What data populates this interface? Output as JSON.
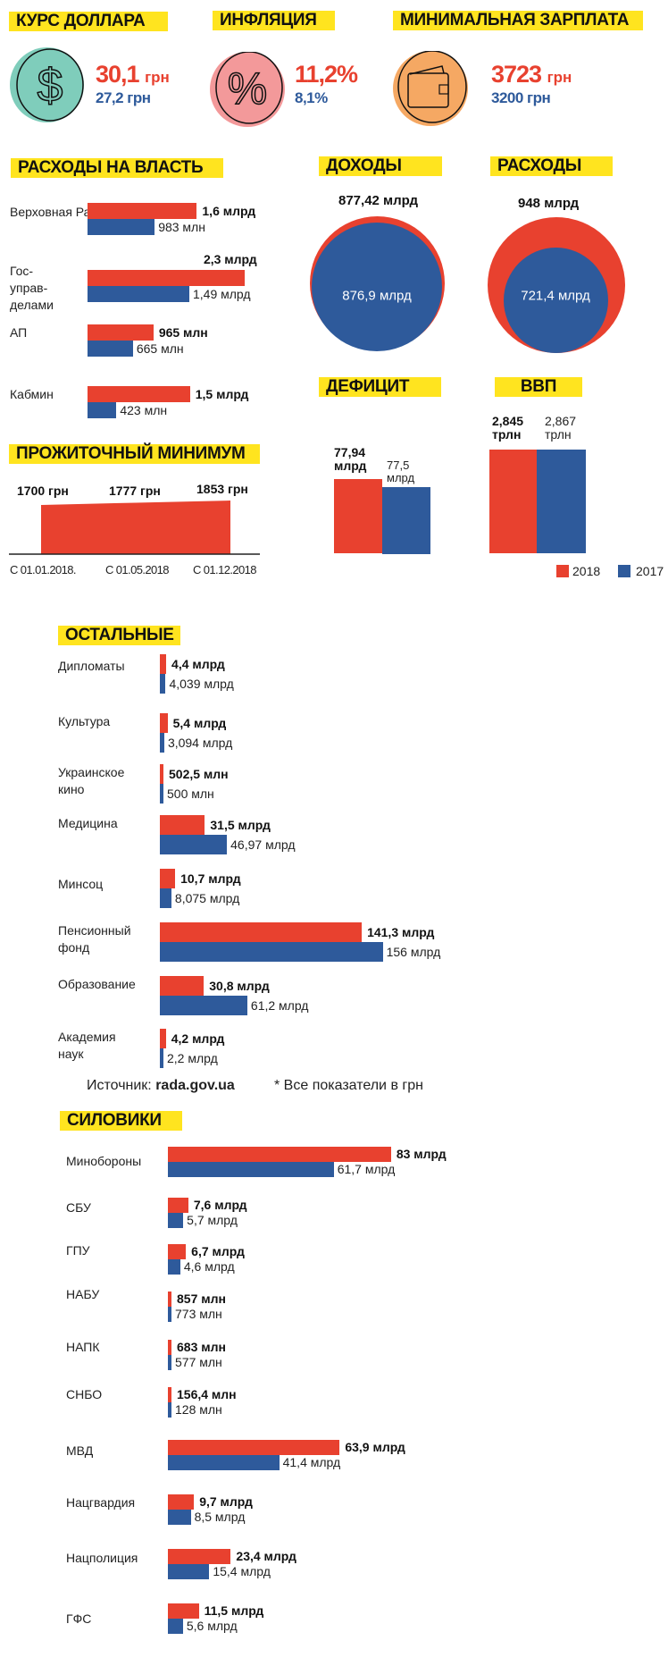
{
  "colors": {
    "y2018": "#E8412F",
    "y2017": "#2E5A9B",
    "highlight": "#FFE41F"
  },
  "headline": {
    "dollar": {
      "title": "КУРС ДОЛЛАРА",
      "value_2018": "30,1",
      "unit_2018": "грн",
      "value_2017": "27,2 грн",
      "icon": "dollar-icon"
    },
    "inflation": {
      "title": "ИНФЛЯЦИЯ",
      "value_2018": "11,2%",
      "value_2017": "8,1%",
      "icon": "percent-icon"
    },
    "min_wage": {
      "title": "МИНИМАЛЬНАЯ ЗАРПЛАТА",
      "value_2018": "3723",
      "unit_2018": "грн",
      "value_2017": "3200 грн",
      "icon": "wallet-icon"
    }
  },
  "chart_data": [
    {
      "type": "bar",
      "title": "РАСХОДЫ НА ВЛАСТЬ",
      "unit": "млрд грн",
      "series": [
        "2018",
        "2017"
      ],
      "rows": [
        {
          "label": "Верховная Рада",
          "v2018": 1.6,
          "v2017": 0.983,
          "l2018": "1,6 млрд",
          "l2017": "983 млн"
        },
        {
          "label": "Гос-\nуправ-\nделами",
          "v2018": 2.3,
          "v2017": 1.49,
          "l2018": "2,3 млрд",
          "l2017": "1,49 млрд"
        },
        {
          "label": "АП",
          "v2018": 0.965,
          "v2017": 0.665,
          "l2018": "965 млн",
          "l2017": "665 млн"
        },
        {
          "label": "Кабмин",
          "v2018": 1.5,
          "v2017": 0.423,
          "l2018": "1,5 млрд",
          "l2017": "423 млн"
        }
      ]
    },
    {
      "type": "area",
      "title": "ДОХОДЫ",
      "v2018": 877.42,
      "v2017": 876.9,
      "l2018": "877,42 млрд",
      "l2017": "876,9 млрд"
    },
    {
      "type": "area",
      "title": "РАСХОДЫ",
      "v2018": 948,
      "v2017": 721.4,
      "l2018": "948 млрд",
      "l2017": "721,4 млрд"
    },
    {
      "type": "area",
      "title": "ПРОЖИТОЧНЫЙ МИНИМУМ",
      "categories": [
        "С 01.01.2018.",
        "С 01.05.2018",
        "С 01.12.2018"
      ],
      "values": [
        1700,
        1777,
        1853
      ],
      "labels": [
        "1700 грн",
        "1777 грн",
        "1853 грн"
      ]
    },
    {
      "type": "bar",
      "title": "ДЕФИЦИТ",
      "v2018": 77.94,
      "v2017": 77.5,
      "l2018": "77,94\nмлрд",
      "l2017": "77,5\nмлрд"
    },
    {
      "type": "bar",
      "title": "ВВП",
      "v2018": 2.845,
      "v2017": 2.867,
      "l2018": "2,845\nтрлн",
      "l2017": "2,867\nтрлн"
    },
    {
      "type": "bar",
      "title": "ОСТАЛЬНЫЕ",
      "unit": "млрд грн",
      "rows": [
        {
          "label": "Дипломаты",
          "v2018": 4.4,
          "v2017": 4.039,
          "l2018": "4,4 млрд",
          "l2017": "4,039 млрд"
        },
        {
          "label": "Культура",
          "v2018": 5.4,
          "v2017": 3.094,
          "l2018": "5,4 млрд",
          "l2017": "3,094 млрд"
        },
        {
          "label": "Украинское\nкино",
          "v2018": 0.5025,
          "v2017": 0.5,
          "l2018": "502,5 млн",
          "l2017": "500 млн"
        },
        {
          "label": "Медицина",
          "v2018": 31.5,
          "v2017": 46.97,
          "l2018": "31,5 млрд",
          "l2017": "46,97 млрд"
        },
        {
          "label": "Минсоц",
          "v2018": 10.7,
          "v2017": 8.075,
          "l2018": "10,7 млрд",
          "l2017": "8,075 млрд"
        },
        {
          "label": "Пенсионный\nфонд",
          "v2018": 141.3,
          "v2017": 156,
          "l2018": "141,3 млрд",
          "l2017": "156 млрд"
        },
        {
          "label": "Образование",
          "v2018": 30.8,
          "v2017": 61.2,
          "l2018": "30,8 млрд",
          "l2017": "61,2 млрд"
        },
        {
          "label": "Академия\nнаук",
          "v2018": 4.2,
          "v2017": 2.2,
          "l2018": "4,2 млрд",
          "l2017": "2,2 млрд"
        }
      ]
    },
    {
      "type": "bar",
      "title": "СИЛОВИКИ",
      "unit": "млрд грн",
      "rows": [
        {
          "label": "Минобороны",
          "v2018": 83,
          "v2017": 61.7,
          "l2018": "83 млрд",
          "l2017": "61,7 млрд"
        },
        {
          "label": "СБУ",
          "v2018": 7.6,
          "v2017": 5.7,
          "l2018": "7,6 млрд",
          "l2017": "5,7 млрд"
        },
        {
          "label": "ГПУ",
          "v2018": 6.7,
          "v2017": 4.6,
          "l2018": "6,7 млрд",
          "l2017": "4,6 млрд"
        },
        {
          "label": "НАБУ",
          "v2018": 0.857,
          "v2017": 0.773,
          "l2018": "857 млн",
          "l2017": "773 млн"
        },
        {
          "label": "НАПК",
          "v2018": 0.683,
          "v2017": 0.577,
          "l2018": "683 млн",
          "l2017": "577 млн"
        },
        {
          "label": "СНБО",
          "v2018": 0.1564,
          "v2017": 0.128,
          "l2018": "156,4 млн",
          "l2017": "128 млн"
        },
        {
          "label": "МВД",
          "v2018": 63.9,
          "v2017": 41.4,
          "l2018": "63,9 млрд",
          "l2017": "41,4 млрд"
        },
        {
          "label": "Нацгвардия",
          "v2018": 9.7,
          "v2017": 8.5,
          "l2018": "9,7 млрд",
          "l2017": "8,5 млрд"
        },
        {
          "label": "Нацполиция",
          "v2018": 23.4,
          "v2017": 15.4,
          "l2018": "23,4 млрд",
          "l2017": "15,4 млрд"
        },
        {
          "label": "ГФС",
          "v2018": 11.5,
          "v2017": 5.6,
          "l2018": "11,5 млрд",
          "l2017": "5,6 млрд"
        }
      ]
    }
  ],
  "legend": {
    "y2018": "2018",
    "y2017": "2017"
  },
  "source": {
    "prefix": "Источник:",
    "site": "rada.gov.ua",
    "note": "* Все показатели в грн"
  }
}
